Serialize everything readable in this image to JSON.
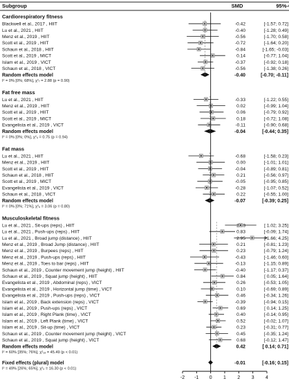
{
  "chart_data": {
    "type": "forest",
    "header": {
      "subgroup": "Subgroup",
      "smd": "SMD",
      "ci": "95%-CI"
    },
    "xlim": [
      -2,
      4
    ],
    "xticks": [
      "-2",
      "-1",
      "0",
      "1",
      "2",
      "3",
      "4"
    ],
    "groups": [
      {
        "name": "Cardiorespiratory fitness",
        "studies": [
          {
            "label": "Blackwell et al., 2017 , HIIT",
            "smd": "-0.42",
            "ci": "[-1.57; 0.72]",
            "est": -0.42,
            "lo": -1.57,
            "hi": 0.72
          },
          {
            "label": "Lu et al., 2021 , HIIT",
            "smd": "-0.40",
            "ci": "[-1.28; 0.49]",
            "est": -0.4,
            "lo": -1.28,
            "hi": 0.49
          },
          {
            "label": "Menz et al., 2019 , HIIT",
            "smd": "-0.56",
            "ci": "[-1.70; 0.58]",
            "est": -0.56,
            "lo": -1.7,
            "hi": 0.58
          },
          {
            "label": "Scott et al., 2019 , HIIT",
            "smd": "-0.72",
            "ci": "[-1.64; 0.20]",
            "est": -0.72,
            "lo": -1.64,
            "hi": 0.2
          },
          {
            "label": "Schaun et al., 2018 , HIIT",
            "smd": "-0.84",
            "ci": "[-1.65; -0.03]",
            "est": -0.84,
            "lo": -1.65,
            "hi": -0.03
          },
          {
            "label": "Scott et al., 2019 , MICT",
            "smd": "0.14",
            "ci": "[-0.77; 1.04]",
            "est": 0.14,
            "lo": -0.77,
            "hi": 1.04
          },
          {
            "label": "Islam et al., 2019 , VICT",
            "smd": "-0.37",
            "ci": "[-0.92; 0.18]",
            "est": -0.37,
            "lo": -0.92,
            "hi": 0.18
          },
          {
            "label": "Schaun et al., 2018 , VICT",
            "smd": "-0.56",
            "ci": "[-1.38; 0.26]",
            "est": -0.56,
            "lo": -1.38,
            "hi": 0.26
          }
        ],
        "model": {
          "label": "Random effects model",
          "smd": "-0.40",
          "ci": "[-0.70; -0.11]",
          "est": -0.4,
          "lo": -0.7,
          "hi": -0.11
        },
        "het": "I² = 0% [0%; 68%], χ²₇ = 2.88 (p = 0.90)"
      },
      {
        "name": "Fat free mass",
        "studies": [
          {
            "label": "Lu et al., 2021 , HIIT",
            "smd": "-0.33",
            "ci": "[-1.22; 0.55]",
            "est": -0.33,
            "lo": -1.22,
            "hi": 0.55
          },
          {
            "label": "Menz et al., 2019 , HIIT",
            "smd": "0.02",
            "ci": "[-0.99; 1.04]",
            "est": 0.02,
            "lo": -0.99,
            "hi": 1.04
          },
          {
            "label": "Scott et al., 2019 , HIIT",
            "smd": "0.06",
            "ci": "[-0.79; 0.92]",
            "est": 0.06,
            "lo": -0.79,
            "hi": 0.92
          },
          {
            "label": "Scott et al., 2019 , MICT",
            "smd": "0.18",
            "ci": "[-0.72; 1.08]",
            "est": 0.18,
            "lo": -0.72,
            "hi": 1.08
          },
          {
            "label": "Evangelista et al., 2019 , VICT",
            "smd": "-0.11",
            "ci": "[-0.90; 0.68]",
            "est": -0.11,
            "lo": -0.9,
            "hi": 0.68
          }
        ],
        "model": {
          "label": "Random effects model",
          "smd": "-0.04",
          "ci": "[-0.44; 0.35]",
          "est": -0.04,
          "lo": -0.44,
          "hi": 0.35
        },
        "het": "I² = 0% [0%; 0%], χ²₄ = 0.75 (p = 0.94)"
      },
      {
        "name": "Fat mass",
        "studies": [
          {
            "label": "Lu et al., 2021 , HIIT",
            "smd": "-0.68",
            "ci": "[-1.58; 0.23]",
            "est": -0.68,
            "lo": -1.58,
            "hi": 0.23
          },
          {
            "label": "Menz et al., 2019 , HIIT",
            "smd": "0.00",
            "ci": "[-1.01; 1.01]",
            "est": 0.0,
            "lo": -1.01,
            "hi": 1.01
          },
          {
            "label": "Scott et al., 2019 , HIIT",
            "smd": "-0.04",
            "ci": "[-0.89; 0.81]",
            "est": -0.04,
            "lo": -0.89,
            "hi": 0.81
          },
          {
            "label": "Schaun et al., 2018 , HIIT",
            "smd": "0.21",
            "ci": "[-0.56; 0.97]",
            "est": 0.21,
            "lo": -0.56,
            "hi": 0.97
          },
          {
            "label": "Scott et al., 2019 , MICT",
            "smd": "-0.05",
            "ci": "[-0.95; 0.85]",
            "est": -0.05,
            "lo": -0.95,
            "hi": 0.85
          },
          {
            "label": "Evangelista et al., 2019 , VICT",
            "smd": "-0.28",
            "ci": "[-1.07; 0.52]",
            "est": -0.28,
            "lo": -1.07,
            "hi": 0.52
          },
          {
            "label": "Schaun et al., 2018 , VICT",
            "smd": "0.22",
            "ci": "[-0.55; 1.00]",
            "est": 0.22,
            "lo": -0.55,
            "hi": 1.0
          }
        ],
        "model": {
          "label": "Random effects model",
          "smd": "-0.07",
          "ci": "[-0.39; 0.25]",
          "est": -0.07,
          "lo": -0.39,
          "hi": 0.25
        },
        "het": "I² = 0% [0%; 71%], χ²₆ = 3.06 (p = 0.80)"
      },
      {
        "name": "Musculoskeletal fitness",
        "studies": [
          {
            "label": "Lu et al., 2021 , Sit-ups (reps) , HIIT",
            "smd": "2.13",
            "ci": "[ 1.02; 3.25]",
            "est": 2.13,
            "lo": 1.02,
            "hi": 3.25
          },
          {
            "label": "Lu et al., 2021 , Push-ups (reps) , HIIT",
            "smd": "0.83",
            "ci": "[-0.09; 1.74]",
            "est": 0.83,
            "lo": -0.09,
            "hi": 1.74
          },
          {
            "label": "Lu et al., 2021 , Broad jump (distance) , HIIT",
            "smd": "2.95",
            "ci": "[ 1.66; 4.25]",
            "est": 2.95,
            "lo": 1.66,
            "hi": 4.25
          },
          {
            "label": "Menz et al., 2019 , Broad Jump (distance) , HIIT",
            "smd": "0.21",
            "ci": "[-0.81; 1.23]",
            "est": 0.21,
            "lo": -0.81,
            "hi": 1.23
          },
          {
            "label": "Menz et al., 2019 , Burpees (reps) , HIIT",
            "smd": "0.23",
            "ci": "[-0.79; 1.24]",
            "est": 0.23,
            "lo": -0.79,
            "hi": 1.24
          },
          {
            "label": "Menz et al., 2019 , Push-ups (reps) , HIIT",
            "smd": "-0.43",
            "ci": "[-1.46; 0.60]",
            "est": -0.43,
            "lo": -1.46,
            "hi": 0.6
          },
          {
            "label": "Menz et al., 2019 , Toes to bar (reps) , HIIT",
            "smd": "-0.13",
            "ci": "[-1.15; 0.89]",
            "est": -0.13,
            "lo": -1.15,
            "hi": 0.89
          },
          {
            "label": "Schaun et al., 2019 , Counter movement jump (height) , HIIT",
            "smd": "-0.40",
            "ci": "[-1.17; 0.37]",
            "est": -0.4,
            "lo": -1.17,
            "hi": 0.37
          },
          {
            "label": "Schaun et al., 2019 , Squat jump (height) , HIIT",
            "smd": "0.84",
            "ci": "[ 0.05; 1.64]",
            "est": 0.84,
            "lo": 0.05,
            "hi": 1.64
          },
          {
            "label": "Evangelista et al., 2019 , Abdominal (reps) , VICT",
            "smd": "0.26",
            "ci": "[-0.53; 1.05]",
            "est": 0.26,
            "lo": -0.53,
            "hi": 1.05
          },
          {
            "label": "Evangelista et al., 2019 , Horizontal jump (time) , VICT",
            "smd": "0.10",
            "ci": "[-0.69; 0.89]",
            "est": 0.1,
            "lo": -0.69,
            "hi": 0.89
          },
          {
            "label": "Evangelista et al., 2019 , Push-ups (reps) , VICT",
            "smd": "0.46",
            "ci": "[-0.34; 1.26]",
            "est": 0.46,
            "lo": -0.34,
            "hi": 1.26
          },
          {
            "label": "Islam et al., 2019 , Back extension (reps) , VICT",
            "smd": "-0.39",
            "ci": "[-0.94; 0.15]",
            "est": -0.39,
            "lo": -0.94,
            "hi": 0.15
          },
          {
            "label": "Islam et al., 2019 , Push-ups (reps) , VICT",
            "smd": "0.69",
            "ci": "[ 0.14; 1.25]",
            "est": 0.69,
            "lo": 0.14,
            "hi": 1.25
          },
          {
            "label": "Islam et al., 2019 , Right Plank (time) , VICT",
            "smd": "0.40",
            "ci": "[-0.14; 0.95]",
            "est": 0.4,
            "lo": -0.14,
            "hi": 0.95
          },
          {
            "label": "Islam et al., 2019 , Left Plank (time) , VICT",
            "smd": "0.52",
            "ci": "[-0.02; 1.07]",
            "est": 0.52,
            "lo": -0.02,
            "hi": 1.07
          },
          {
            "label": "Islam et al., 2019 , Sit-up (time) , VICT",
            "smd": "0.23",
            "ci": "[-0.31; 0.77]",
            "est": 0.23,
            "lo": -0.31,
            "hi": 0.77
          },
          {
            "label": "Schaun et al., 2019 , Counter movement jump (height) , VICT",
            "smd": "0.45",
            "ci": "[-0.35; 1.24]",
            "est": 0.45,
            "lo": -0.35,
            "hi": 1.24
          },
          {
            "label": "Schaun et al., 2019 , Squat jump (height) , VICT",
            "smd": "0.68",
            "ci": "[-0.12; 1.47]",
            "est": 0.68,
            "lo": -0.12,
            "hi": 1.47
          }
        ],
        "model": {
          "label": "Random effects model",
          "smd": "0.42",
          "ci": "[ 0.14; 0.71]",
          "est": 0.42,
          "lo": 0.14,
          "hi": 0.71
        },
        "het": "I² = 60% [35%; 76%], χ²₁₈ = 45.49 (p < 0.01)"
      }
    ],
    "overall": {
      "label": "Fixed effects (plural) model",
      "smd": "-0.01",
      "ci": "[-0.16; 0.15]",
      "est": -0.01,
      "lo": -0.16,
      "hi": 0.15
    },
    "overall_het": "I² = 49% [26%; 65%], χ²₃ = 16.30 (p < 0.01)"
  }
}
